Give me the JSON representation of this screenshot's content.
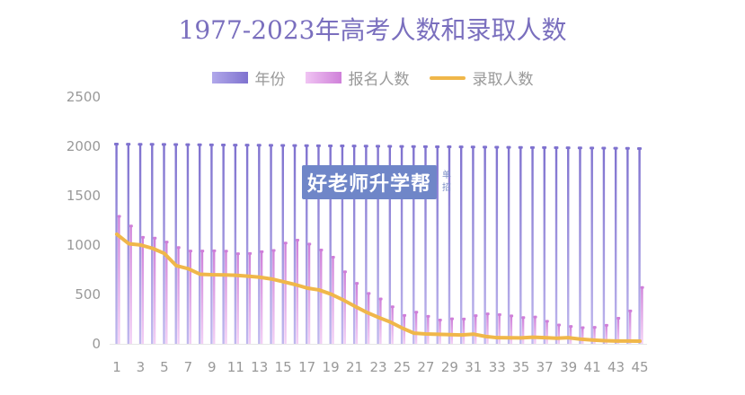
{
  "chart_data": {
    "type": "bar",
    "title": "1977-2023年高考人数和录取人数",
    "legend_placement": "top-center",
    "grid": false,
    "x": [
      1,
      2,
      3,
      4,
      5,
      6,
      7,
      8,
      9,
      10,
      11,
      12,
      13,
      14,
      15,
      16,
      17,
      18,
      19,
      20,
      21,
      22,
      23,
      24,
      25,
      26,
      27,
      28,
      29,
      30,
      31,
      32,
      33,
      34,
      35,
      36,
      37,
      38,
      39,
      40,
      41,
      42,
      43,
      44,
      45
    ],
    "x_tick_labels": [
      "1",
      "3",
      "5",
      "7",
      "9",
      "11",
      "13",
      "15",
      "17",
      "19",
      "21",
      "23",
      "25",
      "27",
      "29",
      "31",
      "33",
      "35",
      "37",
      "39",
      "41",
      "43",
      "45"
    ],
    "ylim": [
      0,
      2500
    ],
    "y_ticks": [
      "0",
      "500",
      "1000",
      "1500",
      "2000",
      "2500"
    ],
    "series": [
      {
        "name": "年份",
        "kind": "bar",
        "color": "#8f83d6",
        "values": [
          2023,
          2022,
          2021,
          2020,
          2019,
          2018,
          2017,
          2016,
          2015,
          2014,
          2013,
          2012,
          2011,
          2010,
          2009,
          2008,
          2007,
          2006,
          2005,
          2004,
          2003,
          2002,
          2001,
          2000,
          1999,
          1998,
          1997,
          1996,
          1995,
          1994,
          1993,
          1992,
          1991,
          1990,
          1989,
          1988,
          1987,
          1986,
          1985,
          1984,
          1983,
          1982,
          1981,
          1980,
          1977
        ]
      },
      {
        "name": "报名人数",
        "kind": "bar",
        "color": "#d98fe0",
        "values": [
          1291,
          1193,
          1078,
          1071,
          1031,
          975,
          940,
          940,
          942,
          939,
          912,
          915,
          933,
          946,
          1020,
          1050,
          1010,
          950,
          877,
          729,
          613,
          510,
          454,
          375,
          288,
          320,
          278,
          241,
          253,
          251,
          285,
          303,
          296,
          283,
          266,
          272,
          228,
          191,
          176,
          164,
          167,
          187,
          259,
          333,
          570
        ]
      },
      {
        "name": "录取人数",
        "kind": "line",
        "color": "#f0b74a",
        "values": [
          1110,
          1014,
          1001,
          967,
          915,
          791,
          761,
          705,
          700,
          698,
          694,
          685,
          675,
          657,
          629,
          600,
          565,
          546,
          504,
          447,
          382,
          320,
          268,
          221,
          160,
          108,
          100,
          97,
          93,
          90,
          98,
          75,
          62,
          61,
          60,
          67,
          62,
          57,
          62,
          48,
          39,
          32,
          28,
          28,
          27
        ]
      }
    ]
  },
  "watermark": {
    "main": "好老师升学帮",
    "side": "单招"
  }
}
